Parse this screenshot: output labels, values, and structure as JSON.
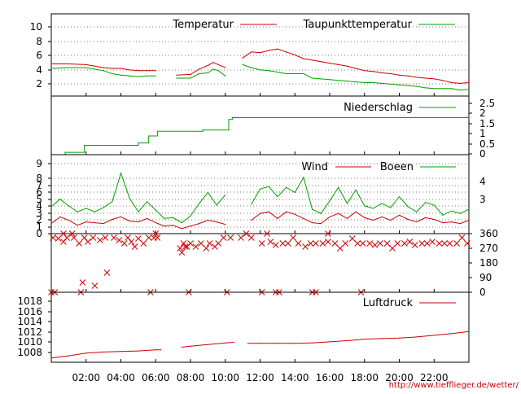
{
  "source_url": "http://www.tiefflieger.de/wetter/",
  "x_axis": {
    "ticks": [
      "02:00",
      "04:00",
      "06:00",
      "08:00",
      "10:00",
      "12:00",
      "14:00",
      "16:00",
      "18:00",
      "20:00",
      "22:00"
    ],
    "range_hours": [
      0,
      24
    ]
  },
  "colors": {
    "primary": "#cc0000",
    "secondary": "#00a000",
    "grid": "#777777",
    "url": "#cc0000"
  },
  "chart_data": [
    {
      "type": "line",
      "panel": "temperature",
      "y_ticks": [
        "2",
        "4",
        "6",
        "8",
        "10"
      ],
      "ylim": [
        0.5,
        11.5
      ],
      "grid": true,
      "legend_placement": "top",
      "x": [
        0,
        1,
        2,
        3,
        3.5,
        4,
        4.5,
        5,
        5.5,
        6,
        6.5,
        7.2,
        8,
        8.5,
        9,
        9.3,
        9.6,
        10,
        10.3,
        11,
        11.5,
        12,
        12.5,
        13,
        13.5,
        14,
        14.5,
        15,
        15.5,
        16,
        16.5,
        17,
        17.5,
        18,
        18.5,
        19,
        19.5,
        20,
        20.5,
        21,
        21.5,
        22,
        22.5,
        23,
        23.5,
        24
      ],
      "series": [
        {
          "name": "Temperatur",
          "values": [
            4.8,
            4.8,
            4.7,
            4.3,
            4.2,
            4.2,
            4.0,
            3.9,
            3.9,
            3.9,
            null,
            3.3,
            3.4,
            4.1,
            4.6,
            5.0,
            4.7,
            4.3,
            null,
            5.6,
            6.4,
            6.3,
            6.6,
            6.8,
            6.4,
            6.0,
            5.5,
            5.3,
            5.1,
            4.9,
            4.7,
            4.5,
            4.2,
            3.9,
            3.8,
            3.6,
            3.5,
            3.3,
            3.2,
            3.0,
            2.9,
            2.8,
            2.6,
            2.3,
            2.2,
            2.3
          ]
        },
        {
          "name": "Taupunkttemperatur",
          "values": [
            4.2,
            4.3,
            4.3,
            3.9,
            3.5,
            3.3,
            3.2,
            3.1,
            3.2,
            3.2,
            null,
            2.9,
            2.9,
            3.5,
            3.6,
            4.1,
            3.9,
            3.2,
            null,
            4.7,
            4.3,
            4.0,
            3.9,
            3.7,
            3.5,
            3.5,
            3.5,
            2.9,
            2.8,
            2.7,
            2.6,
            2.5,
            2.4,
            2.3,
            2.3,
            2.2,
            2.1,
            2.0,
            1.9,
            1.8,
            1.6,
            1.5,
            1.5,
            1.5,
            1.3,
            1.4
          ]
        }
      ]
    },
    {
      "type": "line",
      "panel": "precipitation",
      "y_ticks": [
        "0",
        "0.5",
        "1",
        "1.5",
        "2",
        "2.5"
      ],
      "ylim": [
        0,
        2.5
      ],
      "grid": false,
      "legend_placement": "top-right",
      "x": [
        0,
        0.8,
        0.8,
        1.9,
        1.9,
        2.6,
        2.6,
        5.0,
        5.0,
        5.6,
        5.6,
        6.1,
        6.1,
        8.7,
        8.7,
        10.2,
        10.2,
        10.4,
        10.4,
        24
      ],
      "series": [
        {
          "name": "Niederschlag",
          "values": [
            0,
            0,
            0.1,
            0.1,
            0.4,
            0.4,
            0.4,
            0.4,
            0.5,
            0.5,
            0.8,
            0.8,
            1.0,
            1.0,
            1.05,
            1.05,
            1.5,
            1.5,
            1.58,
            1.58
          ]
        }
      ]
    },
    {
      "type": "line",
      "panel": "wind",
      "y_ticks": [
        "0",
        "1",
        "2",
        "3",
        "4",
        "5",
        "6",
        "7",
        "8",
        "9"
      ],
      "y_ticks_right": [
        "3",
        "4"
      ],
      "ylim": [
        0,
        9.4
      ],
      "grid": true,
      "legend_placement": "top-right",
      "x": [
        0,
        0.5,
        1,
        1.5,
        2,
        2.5,
        3,
        3.5,
        4,
        4.5,
        5,
        5.5,
        6,
        6.5,
        7,
        7.5,
        8,
        8.5,
        9,
        9.5,
        10,
        10.5,
        11,
        11.5,
        12,
        12.5,
        13,
        13.5,
        14,
        14.5,
        15,
        15.5,
        16,
        16.5,
        17,
        17.5,
        18,
        18.5,
        19,
        19.5,
        20,
        20.5,
        21,
        21.5,
        22,
        22.5,
        23,
        23.5,
        24
      ],
      "series": [
        {
          "name": "Wind",
          "values": [
            1.2,
            2.0,
            1.6,
            1.0,
            1.4,
            1.3,
            1.2,
            1.7,
            2.0,
            1.5,
            1.4,
            1.8,
            1.3,
            0.9,
            1.0,
            0.6,
            0.9,
            1.2,
            1.6,
            1.4,
            1.1,
            null,
            null,
            1.6,
            2.4,
            2.6,
            1.8,
            2.6,
            2.3,
            1.8,
            1.3,
            1.2,
            2.0,
            2.4,
            1.8,
            2.6,
            1.9,
            1.6,
            2.0,
            1.6,
            2.2,
            1.7,
            1.4,
            1.9,
            1.7,
            1.3,
            1.4,
            1.2,
            1.6
          ]
        },
        {
          "name": "Boeen",
          "values": [
            3.2,
            4.1,
            3.3,
            2.6,
            3.0,
            2.6,
            3.1,
            3.8,
            7.2,
            4.2,
            2.6,
            3.8,
            2.8,
            1.8,
            1.9,
            1.3,
            2.1,
            3.6,
            4.9,
            3.4,
            4.6,
            null,
            null,
            3.5,
            5.3,
            5.6,
            4.4,
            5.5,
            4.9,
            6.7,
            2.9,
            2.4,
            3.9,
            5.5,
            3.6,
            5.2,
            3.3,
            3.0,
            3.6,
            3.1,
            4.4,
            3.2,
            2.6,
            3.7,
            3.4,
            2.2,
            2.7,
            2.4,
            2.9
          ]
        }
      ]
    },
    {
      "type": "scatter",
      "panel": "wind_direction",
      "y_ticks": [
        "0",
        "90",
        "180",
        "270",
        "360"
      ],
      "ylim": [
        0,
        360
      ],
      "grid": false,
      "series": [
        {
          "name": "",
          "x": [
            0.1,
            0.4,
            0.7,
            0.9,
            1.3,
            1.6,
            1.9,
            2.1,
            2.4,
            2.8,
            3.1,
            3.6,
            3.9,
            4.2,
            4.4,
            4.6,
            4.8,
            5.0,
            5.3,
            5.6,
            5.9,
            6.1,
            7.4,
            7.5,
            7.6,
            7.7,
            7.8,
            8.0,
            8.3,
            8.6,
            8.9,
            9.1,
            9.4,
            9.6,
            9.9,
            10.3,
            10.9,
            11.5,
            12.1,
            12.6,
            12.9,
            13.3,
            13.6,
            13.9,
            14.2,
            14.6,
            14.9,
            15.2,
            15.6,
            15.9,
            16.3,
            16.6,
            16.9,
            17.3,
            17.6,
            17.9,
            18.3,
            18.6,
            18.9,
            19.3,
            19.6,
            19.9,
            20.3,
            20.6,
            20.9,
            21.3,
            21.6,
            21.9,
            22.3,
            22.6,
            22.9,
            23.3,
            23.6,
            23.9,
            1.8,
            2.5,
            3.2,
            0.0,
            0.2,
            1.7,
            5.7,
            7.9,
            10.1,
            12.1,
            12.9,
            13.1,
            15.0,
            15.2,
            17.8,
            0.7,
            1.2,
            6.0,
            11.2,
            12.4,
            15.9
          ],
          "y": [
            335,
            330,
            310,
            335,
            335,
            300,
            335,
            310,
            335,
            320,
            335,
            335,
            320,
            300,
            335,
            310,
            280,
            330,
            300,
            335,
            335,
            335,
            270,
            245,
            300,
            280,
            280,
            300,
            280,
            300,
            270,
            300,
            280,
            300,
            335,
            335,
            335,
            335,
            300,
            310,
            290,
            300,
            300,
            335,
            300,
            280,
            300,
            300,
            300,
            310,
            300,
            270,
            300,
            330,
            300,
            300,
            300,
            290,
            300,
            300,
            270,
            300,
            300,
            310,
            290,
            300,
            300,
            310,
            300,
            300,
            300,
            300,
            335,
            300,
            60,
            40,
            120,
            0,
            0,
            0,
            0,
            0,
            0,
            0,
            0,
            0,
            0,
            0,
            0,
            360,
            360,
            360,
            360,
            360,
            360
          ]
        }
      ]
    },
    {
      "type": "line",
      "panel": "pressure",
      "y_ticks": [
        "1008",
        "1010",
        "1012",
        "1014",
        "1016",
        "1018"
      ],
      "ylim": [
        1006.5,
        1019.5
      ],
      "grid": false,
      "legend_placement": "top-right",
      "x": [
        0,
        1,
        2,
        3,
        4,
        5,
        6,
        6.3,
        null,
        7.5,
        8,
        9,
        10,
        10.5,
        null,
        11.3,
        12,
        13,
        14,
        15,
        16,
        17,
        18,
        19,
        20,
        21,
        22,
        23,
        24
      ],
      "series": [
        {
          "name": "Luftdruck",
          "values": [
            1007.3,
            1007.7,
            1008.2,
            1008.4,
            1008.5,
            1008.6,
            1008.8,
            1008.8,
            null,
            1009.3,
            1009.5,
            1009.8,
            1010.1,
            1010.2,
            null,
            1010.0,
            1010.0,
            1010.0,
            1010.0,
            1010.1,
            1010.3,
            1010.5,
            1010.8,
            1010.9,
            1011.0,
            1011.2,
            1011.5,
            1011.8,
            1012.2
          ]
        }
      ]
    }
  ]
}
